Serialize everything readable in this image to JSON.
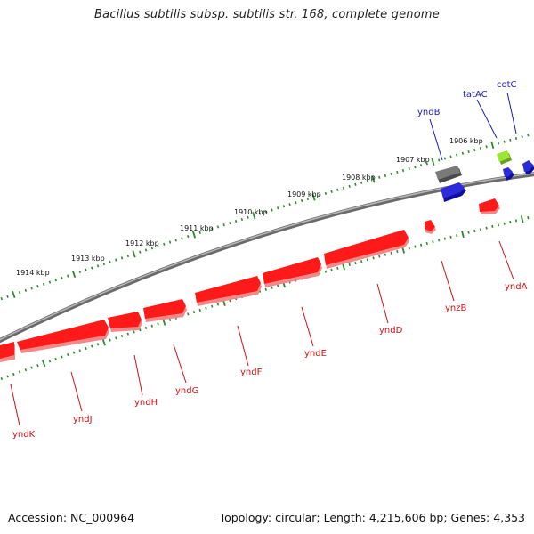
{
  "title": "Bacillus subtilis subsp. subtilis str. 168, complete genome",
  "footer": {
    "accession_label": "Accession: NC_000964",
    "topology_label": "Topology: circular; Length: 4,215,606 bp; Genes: 4,353"
  },
  "colors": {
    "backbone": "#8a8a8a",
    "forward_gene": "#2b2bd8",
    "reverse_gene": "#ff1a1a",
    "other_gene_gray": "#6f6f6f",
    "other_gene_green": "#99e633",
    "tick": "#2a8a2a",
    "forward_label": "#1a1ab8",
    "reverse_label": "#d01010"
  },
  "ruler_labels": [
    "1914 kbp",
    "1913 kbp",
    "1912 kbp",
    "1911 kbp",
    "1910 kbp",
    "1909 kbp",
    "1908 kbp",
    "1907 kbp",
    "1906 kbp"
  ],
  "genes": {
    "forward": [
      "yndB",
      "tatAC",
      "cotC"
    ],
    "reverse": [
      "yndA",
      "ynzB",
      "yndD",
      "yndE",
      "yndF",
      "yndG",
      "yndH",
      "yndJ",
      "yndK"
    ]
  }
}
